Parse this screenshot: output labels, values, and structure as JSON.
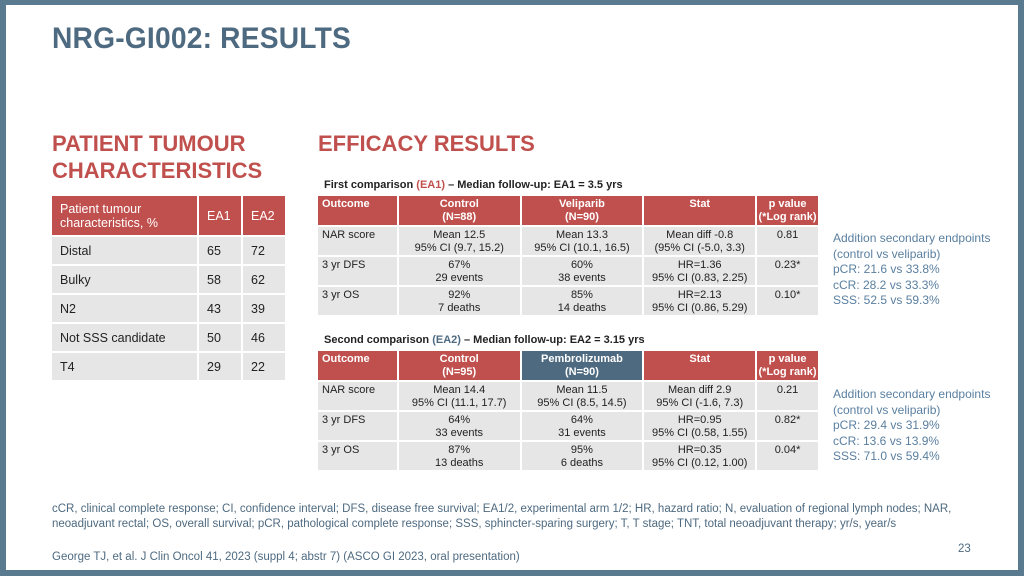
{
  "slide": {
    "title": "NRG-GI002: RESULTS",
    "page_number": "23"
  },
  "left_section": {
    "heading": "PATIENT TUMOUR CHARACTERISTICS",
    "table": {
      "header": [
        "Patient tumour characteristics, %",
        "EA1",
        "EA2"
      ],
      "rows": [
        [
          "Distal",
          "65",
          "72"
        ],
        [
          "Bulky",
          "58",
          "62"
        ],
        [
          "N2",
          "43",
          "39"
        ],
        [
          "Not SSS candidate",
          "50",
          "46"
        ],
        [
          "T4",
          "29",
          "22"
        ]
      ]
    }
  },
  "right_section": {
    "heading": "EFFICACY RESULTS",
    "first_comparison": {
      "label_prefix": "First comparison ",
      "arm_tag": "(EA1)",
      "label_suffix": " – Median follow-up: EA1 = 3.5 yrs",
      "header": {
        "outcome": "Outcome",
        "control": [
          "Control",
          "(N=88)"
        ],
        "arm": [
          "Veliparib",
          "(N=90)"
        ],
        "stat": "Stat",
        "pvalue": [
          "p value",
          "(*Log rank)"
        ]
      },
      "rows": [
        {
          "outcome": "NAR score",
          "control": [
            "Mean 12.5",
            "95% CI (9.7, 15.2)"
          ],
          "arm": [
            "Mean 13.3",
            "95% CI (10.1, 16.5)"
          ],
          "stat": [
            "Mean diff -0.8",
            "(95% CI (-5.0, 3.3)"
          ],
          "pvalue": "0.81"
        },
        {
          "outcome": "3 yr DFS",
          "control": [
            "67%",
            "29 events"
          ],
          "arm": [
            "60%",
            "38 events"
          ],
          "stat": [
            "HR=1.36",
            "95% CI (0.83, 2.25)"
          ],
          "pvalue": "0.23*"
        },
        {
          "outcome": "3 yr OS",
          "control": [
            "92%",
            "7 deaths"
          ],
          "arm": [
            "85%",
            "14 deaths"
          ],
          "stat": [
            "HR=2.13",
            "95% CI (0.86, 5.29)"
          ],
          "pvalue": "0.10*"
        }
      ],
      "side_note": [
        "Addition secondary endpoints",
        "(control vs veliparib)",
        "pCR: 21.6 vs 33.8%",
        "cCR: 28.2 vs 33.3%",
        "SSS: 52.5 vs 59.3%"
      ]
    },
    "second_comparison": {
      "label_prefix": "Second comparison ",
      "arm_tag": "(EA2)",
      "label_suffix": " – Median follow-up: EA2 = 3.15 yrs",
      "header": {
        "outcome": "Outcome",
        "control": [
          "Control",
          "(N=95)"
        ],
        "arm": [
          "Pembrolizumab",
          "(N=90)"
        ],
        "stat": "Stat",
        "pvalue": [
          "p value",
          "(*Log rank)"
        ]
      },
      "rows": [
        {
          "outcome": "NAR score",
          "control": [
            "Mean 14.4",
            "95% CI (11.1, 17.7)"
          ],
          "arm": [
            "Mean 11.5",
            "95% CI (8.5, 14.5)"
          ],
          "stat": [
            "Mean diff 2.9",
            "95% CI (-1.6, 7.3)"
          ],
          "pvalue": "0.21"
        },
        {
          "outcome": "3 yr DFS",
          "control": [
            "64%",
            "33 events"
          ],
          "arm": [
            "64%",
            "31 events"
          ],
          "stat": [
            "HR=0.95",
            "95% CI (0.58, 1.55)"
          ],
          "pvalue": "0.82*"
        },
        {
          "outcome": "3 yr OS",
          "control": [
            "87%",
            "13 deaths"
          ],
          "arm": [
            "95%",
            "6 deaths"
          ],
          "stat": [
            "HR=0.35",
            "95% CI (0.12, 1.00)"
          ],
          "pvalue": "0.04*"
        }
      ],
      "side_note": [
        "Addition secondary endpoints",
        "(control vs veliparib)",
        "pCR: 29.4 vs 31.9%",
        "cCR: 13.6 vs 13.9%",
        "SSS: 71.0 vs 59.4%"
      ]
    }
  },
  "footnote": "cCR, clinical complete response; CI, confidence interval; DFS, disease free survival; EA1/2, experimental arm 1/2; HR, hazard ratio; N, evaluation of regional lymph nodes; NAR, neoadjuvant rectal; OS, overall survival; pCR, pathological complete response; SSS, sphincter-sparing surgery; T, T stage; TNT, total neoadjuvant therapy; yr/s, year/s",
  "citation": "George TJ, et al. J Clin Oncol 41, 2023 (suppl 4; abstr 7) (ASCO GI 2023, oral presentation)",
  "colors": {
    "title_blue": "#4e6a80",
    "accent_red": "#c0504d",
    "note_blue": "#5a7fa0",
    "cell_gray": "#e6e6e6"
  }
}
